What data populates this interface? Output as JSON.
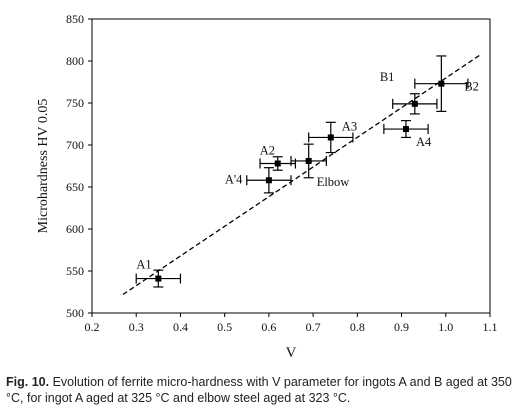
{
  "chart_data": {
    "type": "scatter",
    "xlabel": "V",
    "ylabel": "Microhardness HV 0.05",
    "xlim": [
      0.2,
      1.1
    ],
    "ylim": [
      500,
      850
    ],
    "x_ticks": [
      "0.2",
      "0.3",
      "0.4",
      "0.5",
      "0.6",
      "0.7",
      "0.8",
      "0.9",
      "1.0",
      "1.1"
    ],
    "y_ticks": [
      "500",
      "550",
      "600",
      "650",
      "700",
      "750",
      "800",
      "850"
    ],
    "grid": false,
    "points": [
      {
        "label": "A1",
        "x": 0.35,
        "y": 541,
        "xerr": 0.05,
        "yerr": 10
      },
      {
        "label": "A'4",
        "x": 0.6,
        "y": 658,
        "xerr": 0.05,
        "yerr": 15
      },
      {
        "label": "A2",
        "x": 0.62,
        "y": 678,
        "xerr": 0.04,
        "yerr": 8
      },
      {
        "label": "Elbow",
        "x": 0.69,
        "y": 681,
        "xerr": 0.04,
        "yerr": 20
      },
      {
        "label": "A3",
        "x": 0.74,
        "y": 709,
        "xerr": 0.05,
        "yerr": 18
      },
      {
        "label": "A4",
        "x": 0.91,
        "y": 719,
        "xerr": 0.05,
        "yerr": 10
      },
      {
        "label": "B1",
        "x": 0.93,
        "y": 749,
        "xerr": 0.05,
        "yerr": 12
      },
      {
        "label": "B2",
        "x": 0.99,
        "y": 773,
        "xerr": 0.06,
        "yerr": 33
      }
    ],
    "trend_line": {
      "style": "dashed",
      "x": [
        0.27,
        1.08
      ],
      "y": [
        522,
        808
      ]
    }
  },
  "caption": {
    "label": "Fig. 10.",
    "text": "Evolution of ferrite micro-hardness with V parameter for ingots A and B aged at 350 °C, for ingot A aged at 325 °C and elbow steel aged at 323 °C."
  }
}
